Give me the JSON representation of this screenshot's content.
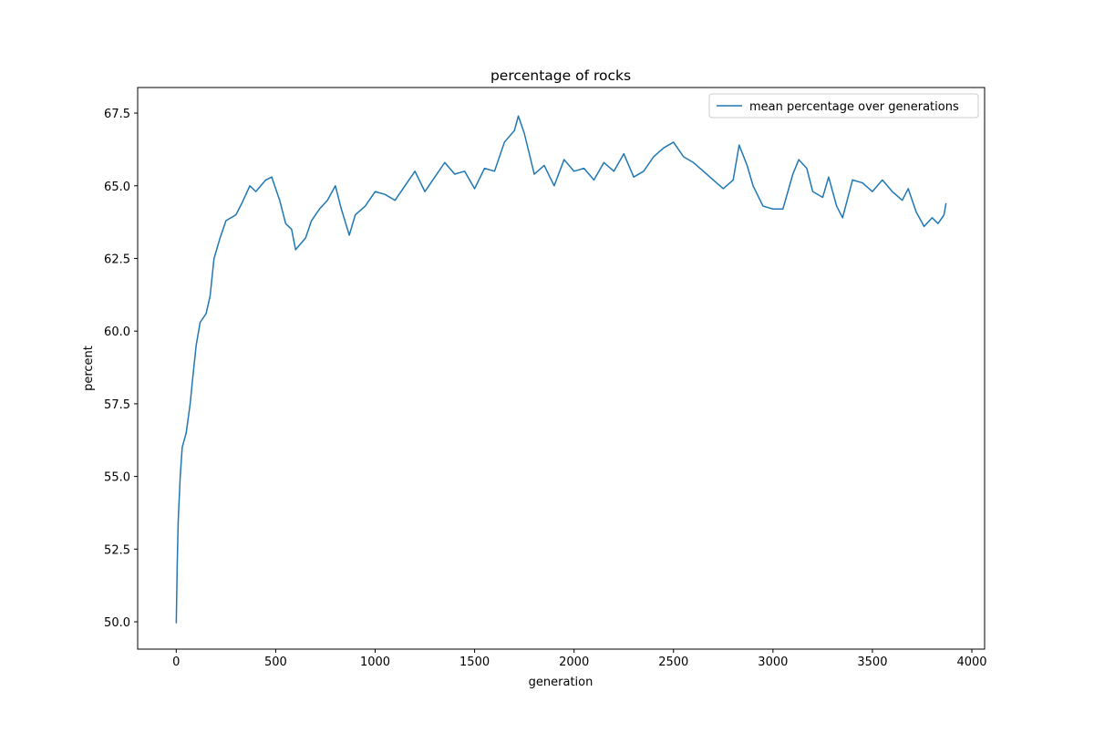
{
  "chart_data": {
    "type": "line",
    "title": "percentage of rocks",
    "xlabel": "generation",
    "ylabel": "percent",
    "x": [
      0,
      5,
      10,
      20,
      30,
      50,
      70,
      80,
      100,
      120,
      150,
      170,
      190,
      220,
      250,
      300,
      330,
      370,
      400,
      450,
      480,
      520,
      550,
      580,
      600,
      650,
      680,
      720,
      760,
      800,
      830,
      870,
      900,
      950,
      1000,
      1050,
      1100,
      1150,
      1200,
      1250,
      1300,
      1350,
      1400,
      1450,
      1500,
      1550,
      1600,
      1650,
      1700,
      1720,
      1750,
      1800,
      1850,
      1900,
      1950,
      2000,
      2050,
      2100,
      2150,
      2200,
      2250,
      2300,
      2350,
      2400,
      2450,
      2500,
      2550,
      2600,
      2650,
      2700,
      2750,
      2800,
      2830,
      2870,
      2900,
      2950,
      3000,
      3050,
      3100,
      3130,
      3170,
      3200,
      3250,
      3280,
      3320,
      3350,
      3400,
      3450,
      3500,
      3550,
      3600,
      3650,
      3680,
      3720,
      3760,
      3800,
      3830,
      3860,
      3870
    ],
    "series": [
      {
        "name": "mean percentage over generations",
        "color": "#1f77b4",
        "values": [
          49.95,
          52,
          53.5,
          55,
          56,
          56.5,
          57.5,
          58.2,
          59.5,
          60.3,
          60.6,
          61.2,
          62.5,
          63.2,
          63.8,
          64.0,
          64.4,
          65.0,
          64.8,
          65.2,
          65.3,
          64.5,
          63.7,
          63.5,
          62.8,
          63.2,
          63.8,
          64.2,
          64.5,
          65.0,
          64.2,
          63.3,
          64.0,
          64.3,
          64.8,
          64.7,
          64.5,
          65.0,
          65.5,
          64.8,
          65.3,
          65.8,
          65.4,
          65.5,
          64.9,
          65.6,
          65.5,
          66.5,
          66.9,
          67.4,
          66.8,
          65.4,
          65.7,
          65.0,
          65.9,
          65.5,
          65.6,
          65.2,
          65.8,
          65.5,
          66.1,
          65.3,
          65.5,
          66.0,
          66.3,
          66.5,
          66.0,
          65.8,
          65.5,
          65.2,
          64.9,
          65.2,
          66.4,
          65.7,
          65.0,
          64.3,
          64.2,
          64.2,
          65.4,
          65.9,
          65.6,
          64.8,
          64.6,
          65.3,
          64.3,
          63.9,
          65.2,
          65.1,
          64.8,
          65.2,
          64.8,
          64.5,
          64.9,
          64.1,
          63.6,
          63.9,
          63.7,
          64.0,
          64.4
        ]
      }
    ],
    "xlim": [
      -194,
      4064
    ],
    "ylim": [
      49.06,
      68.38
    ],
    "xticks": [
      0,
      500,
      1000,
      1500,
      2000,
      2500,
      3000,
      3500,
      4000
    ],
    "yticks": [
      {
        "value": 50,
        "label": "50.0"
      },
      52.5,
      {
        "value": 55,
        "label": "55.0"
      },
      57.5,
      {
        "value": 60,
        "label": "60.0"
      },
      62.5,
      {
        "value": 65,
        "label": "65.0"
      },
      67.5
    ],
    "legend": "upper right"
  }
}
